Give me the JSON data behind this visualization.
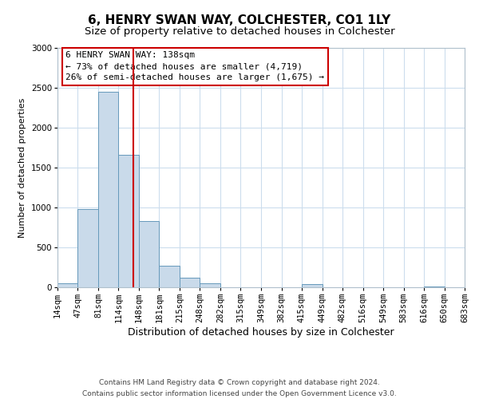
{
  "title": "6, HENRY SWAN WAY, COLCHESTER, CO1 1LY",
  "subtitle": "Size of property relative to detached houses in Colchester",
  "xlabel": "Distribution of detached houses by size in Colchester",
  "ylabel": "Number of detached properties",
  "bin_edges": [
    14,
    47,
    81,
    114,
    148,
    181,
    215,
    248,
    282,
    315,
    349,
    382,
    415,
    449,
    482,
    516,
    549,
    583,
    616,
    650,
    683
  ],
  "bin_labels": [
    "14sqm",
    "47sqm",
    "81sqm",
    "114sqm",
    "148sqm",
    "181sqm",
    "215sqm",
    "248sqm",
    "282sqm",
    "315sqm",
    "349sqm",
    "382sqm",
    "415sqm",
    "449sqm",
    "482sqm",
    "516sqm",
    "549sqm",
    "583sqm",
    "616sqm",
    "650sqm",
    "683sqm"
  ],
  "counts": [
    55,
    980,
    2450,
    1660,
    830,
    270,
    125,
    50,
    5,
    0,
    0,
    0,
    40,
    0,
    5,
    0,
    0,
    0,
    10,
    0,
    0
  ],
  "bar_color": "#c9daea",
  "bar_edge_color": "#6699bb",
  "vline_x": 138,
  "vline_color": "#cc0000",
  "annotation_line1": "6 HENRY SWAN WAY: 138sqm",
  "annotation_line2": "← 73% of detached houses are smaller (4,719)",
  "annotation_line3": "26% of semi-detached houses are larger (1,675) →",
  "annotation_box_edge_color": "#cc0000",
  "ylim": [
    0,
    3000
  ],
  "yticks": [
    0,
    500,
    1000,
    1500,
    2000,
    2500,
    3000
  ],
  "footer_line1": "Contains HM Land Registry data © Crown copyright and database right 2024.",
  "footer_line2": "Contains public sector information licensed under the Open Government Licence v3.0.",
  "title_fontsize": 11,
  "subtitle_fontsize": 9.5,
  "xlabel_fontsize": 9,
  "ylabel_fontsize": 8,
  "tick_fontsize": 7.5,
  "footer_fontsize": 6.5,
  "annotation_fontsize": 8,
  "background_color": "#ffffff",
  "grid_color": "#ccdded"
}
